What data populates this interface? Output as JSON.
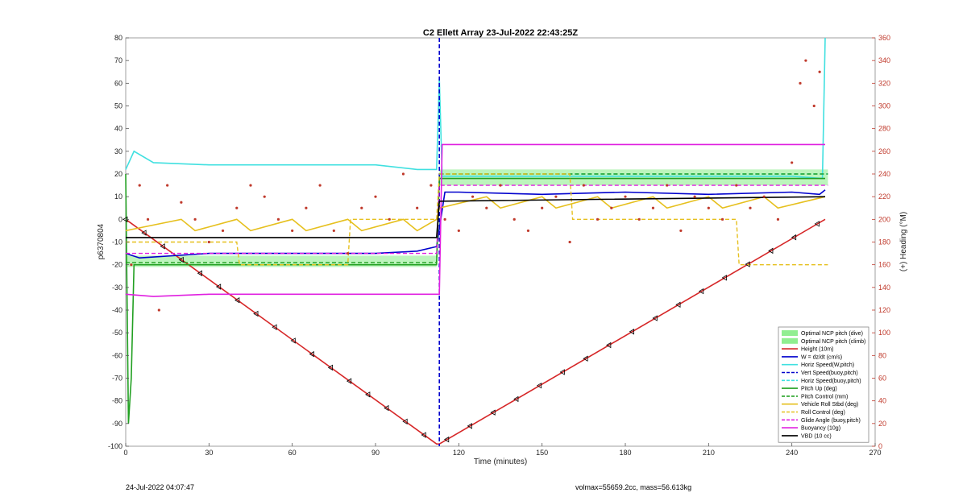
{
  "chart_data": {
    "type": "line",
    "title": "C2 Ellett Array 23-Jul-2022 22:43:25Z",
    "xlabel": "Time (minutes)",
    "ylabel": "p6370804",
    "y2label": "(+) Heading (°M)",
    "xlim": [
      0,
      270
    ],
    "ylim": [
      -100,
      80
    ],
    "y2lim": [
      0,
      360
    ],
    "x_ticks": [
      0,
      30,
      60,
      90,
      120,
      150,
      180,
      210,
      240,
      270
    ],
    "y_ticks": [
      -100,
      -90,
      -80,
      -70,
      -60,
      -50,
      -40,
      -30,
      -20,
      -10,
      0,
      10,
      20,
      30,
      40,
      50,
      60,
      70,
      80
    ],
    "y2_ticks": [
      0,
      20,
      40,
      60,
      80,
      100,
      120,
      140,
      160,
      180,
      200,
      220,
      240,
      260,
      280,
      300,
      320,
      340,
      360
    ],
    "grid": false,
    "legend_position": "bottom-right",
    "colors": {
      "optimal": "#90ee90",
      "height": "#d62728",
      "w": "#0000cd",
      "horiz": "#40e0e0",
      "vert": "#0000cd",
      "pitch": "#22a022",
      "roll": "#e6c01e",
      "glide": "#e020e0",
      "buoy": "#e020e0",
      "vbd": "#000000",
      "heading": "#c0392b"
    },
    "series": [
      {
        "name": "Height (10m)",
        "x": [
          0,
          112,
          113,
          252
        ],
        "values": [
          0,
          -99,
          -99,
          0
        ]
      },
      {
        "name": "W = dz/dt (cm/s)",
        "x": [
          0,
          5,
          30,
          60,
          90,
          105,
          112,
          115,
          120,
          150,
          180,
          210,
          240,
          250,
          252
        ],
        "values": [
          -15,
          -17,
          -15,
          -15,
          -15,
          -14,
          -12,
          12,
          12,
          11,
          12,
          11,
          12,
          11,
          13
        ]
      },
      {
        "name": "Horiz Speed(W,pitch)",
        "x": [
          0,
          3,
          10,
          30,
          60,
          90,
          105,
          112,
          113,
          114,
          120,
          150,
          180,
          210,
          240,
          251,
          252
        ],
        "values": [
          22,
          30,
          25,
          24,
          24,
          24,
          22,
          22,
          62,
          19,
          19,
          19,
          19,
          19,
          19,
          18,
          80
        ]
      },
      {
        "name": "Vert Speed(buoy,pitch)",
        "x": [
          113,
          113
        ],
        "values": [
          80,
          -100
        ]
      },
      {
        "name": "Horiz Speed(buoy,pitch)",
        "x": [
          113,
          253
        ],
        "values": [
          20,
          20
        ]
      },
      {
        "name": "Pitch Up (deg)",
        "x": [
          0,
          1,
          2,
          3,
          5,
          30,
          60,
          90,
          112,
          113,
          120,
          150,
          180,
          210,
          240,
          252
        ],
        "values": [
          20,
          -90,
          -70,
          -20,
          -20,
          -20,
          -20,
          -20,
          -20,
          18,
          18,
          18,
          18,
          18,
          18,
          18
        ]
      },
      {
        "name": "Pitch Control (mm)",
        "x": [
          0,
          112,
          113,
          253
        ],
        "values": [
          -19,
          -19,
          20,
          20
        ]
      },
      {
        "name": "Vehicle Roll Stbd (deg)",
        "x": [
          0,
          20,
          25,
          40,
          45,
          60,
          65,
          80,
          85,
          100,
          105,
          112,
          113,
          130,
          135,
          150,
          155,
          170,
          175,
          190,
          195,
          210,
          215,
          230,
          235,
          252
        ],
        "values": [
          -5,
          0,
          -5,
          0,
          -5,
          0,
          -5,
          0,
          -5,
          0,
          -5,
          0,
          5,
          10,
          5,
          10,
          5,
          10,
          5,
          10,
          5,
          10,
          5,
          10,
          5,
          10
        ]
      },
      {
        "name": "Roll Control (deg)",
        "x": [
          0,
          40,
          41,
          80,
          81,
          112,
          113,
          160,
          161,
          220,
          221,
          253
        ],
        "values": [
          -10,
          -10,
          -20,
          -20,
          0,
          0,
          20,
          20,
          0,
          0,
          -20,
          -20
        ]
      },
      {
        "name": "Glide Angle (buoy,pitch)",
        "x": [
          0,
          112,
          113,
          253
        ],
        "values": [
          -15,
          -15,
          15,
          15
        ]
      },
      {
        "name": "Buoyancy (10g)",
        "x": [
          0,
          10,
          30,
          60,
          90,
          112,
          113,
          114,
          120,
          150,
          180,
          210,
          240,
          252
        ],
        "values": [
          -33,
          -34,
          -33,
          -33,
          -33,
          -33,
          -33,
          33,
          33,
          33,
          33,
          33,
          33,
          33
        ]
      },
      {
        "name": "VBD (10 cc)",
        "x": [
          0,
          112,
          113,
          252
        ],
        "values": [
          -8,
          -8,
          8,
          10
        ]
      },
      {
        "name": "Optimal NCP pitch (dive)",
        "x": [
          0,
          112
        ],
        "band": [
          -16,
          -21
        ]
      },
      {
        "name": "Optimal NCP pitch (climb)",
        "x": [
          113,
          253
        ],
        "band": [
          22,
          15
        ]
      }
    ],
    "heading_points": {
      "axis": "y2",
      "x": [
        2,
        5,
        8,
        12,
        15,
        20,
        25,
        30,
        35,
        40,
        45,
        50,
        55,
        60,
        65,
        70,
        75,
        80,
        85,
        90,
        95,
        100,
        105,
        110,
        115,
        120,
        125,
        130,
        135,
        140,
        145,
        150,
        155,
        160,
        165,
        170,
        175,
        180,
        185,
        190,
        195,
        200,
        205,
        210,
        215,
        220,
        225,
        230,
        235,
        240,
        243,
        245,
        248,
        250
      ],
      "values": [
        160,
        230,
        200,
        120,
        230,
        215,
        200,
        180,
        190,
        210,
        230,
        220,
        200,
        190,
        210,
        230,
        190,
        170,
        210,
        220,
        200,
        240,
        210,
        230,
        200,
        190,
        220,
        210,
        230,
        200,
        190,
        210,
        220,
        180,
        230,
        200,
        210,
        220,
        200,
        210,
        230,
        190,
        220,
        210,
        200,
        230,
        210,
        220,
        200,
        250,
        320,
        340,
        300,
        330
      ]
    },
    "legend": [
      "Optimal NCP pitch (dive)",
      "Optimal NCP pitch (climb)",
      "Height (10m)",
      "W = dz/dt (cm/s)",
      "Horiz Speed(W,pitch)",
      "Vert Speed(buoy,pitch)",
      "Horiz Speed(buoy,pitch)",
      "Pitch Up (deg)",
      "Pitch Control (mm)",
      "Vehicle Roll Stbd (deg)",
      "Roll Control (deg)",
      "Glide Angle (buoy,pitch)",
      "Buoyancy (10g)",
      "VBD (10 cc)"
    ]
  },
  "footer": {
    "left": "24-Jul-2022 04:07:47",
    "right": "volmax=55659.2cc, mass=56.613kg"
  }
}
